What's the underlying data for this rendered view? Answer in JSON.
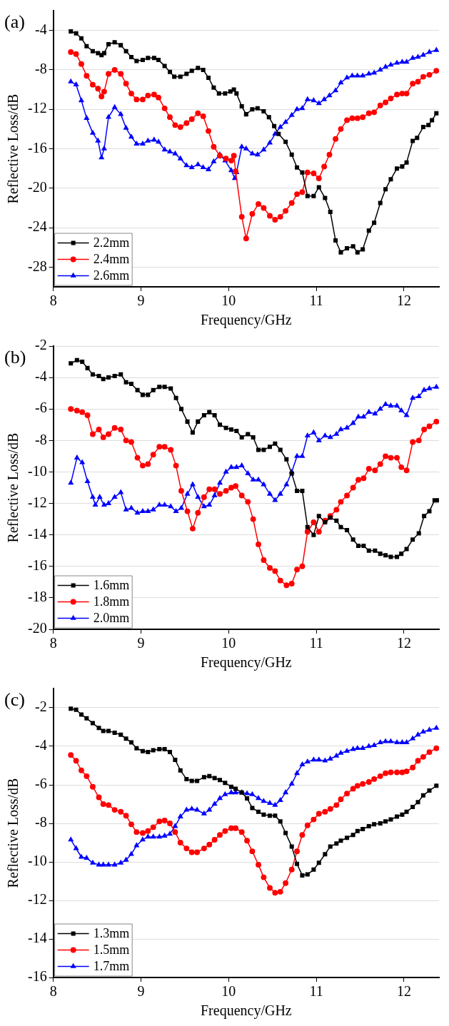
{
  "chart_data": [
    {
      "type": "line",
      "title": "(a)",
      "xlabel": "Frequency/GHz",
      "ylabel": "Reflective Loss/dB",
      "xlim": [
        8,
        12.4
      ],
      "xticks": [
        8,
        9,
        10,
        11,
        12
      ],
      "ylim": [
        -30,
        -2
      ],
      "yticks": [
        -28,
        -24,
        -20,
        -16,
        -12,
        -8,
        -4
      ],
      "grid": "y",
      "legend": "bottom left",
      "series": [
        {
          "name": "2.2mm",
          "color": "#000000",
          "marker": "square",
          "x": [
            8.2,
            8.26,
            8.32,
            8.38,
            8.45,
            8.51,
            8.55,
            8.58,
            8.63,
            8.7,
            8.77,
            8.83,
            8.89,
            8.95,
            9.02,
            9.08,
            9.15,
            9.2,
            9.27,
            9.33,
            9.38,
            9.45,
            9.52,
            9.58,
            9.65,
            9.71,
            9.77,
            9.83,
            9.89,
            9.96,
            10.02,
            10.06,
            10.09,
            10.15,
            10.2,
            10.27,
            10.33,
            10.4,
            10.46,
            10.52,
            10.57,
            10.65,
            10.72,
            10.78,
            10.84,
            10.9,
            10.97,
            11.03,
            11.1,
            11.16,
            11.22,
            11.28,
            11.35,
            11.42,
            11.47,
            11.53,
            11.6,
            11.66,
            11.73,
            11.79,
            11.85,
            11.92,
            11.98,
            12.03,
            12.1,
            12.15,
            12.22,
            12.28,
            12.32,
            12.37
          ],
          "values": [
            -4.1,
            -4.3,
            -4.8,
            -5.6,
            -6.1,
            -6.3,
            -6.5,
            -6.3,
            -5.4,
            -5.2,
            -5.5,
            -6.1,
            -6.7,
            -7.1,
            -7.0,
            -6.8,
            -6.8,
            -7.0,
            -7.6,
            -8.2,
            -8.7,
            -8.7,
            -8.4,
            -8.1,
            -7.8,
            -8.0,
            -8.8,
            -9.8,
            -10.4,
            -10.4,
            -10.2,
            -10.0,
            -10.4,
            -11.7,
            -12.5,
            -12.0,
            -11.9,
            -12.2,
            -12.8,
            -13.7,
            -14.5,
            -15.3,
            -16.6,
            -17.9,
            -18.4,
            -20.8,
            -20.8,
            -19.9,
            -21.0,
            -22.4,
            -25.3,
            -26.5,
            -26.1,
            -25.9,
            -26.5,
            -26.2,
            -24.3,
            -23.5,
            -21.5,
            -20.1,
            -19.1,
            -18.0,
            -17.8,
            -17.4,
            -15.2,
            -14.9,
            -13.8,
            -13.6,
            -13.1,
            -12.4
          ]
        },
        {
          "name": "2.4mm",
          "color": "#ff0000",
          "marker": "circle",
          "x": [
            8.2,
            8.26,
            8.32,
            8.38,
            8.45,
            8.51,
            8.55,
            8.58,
            8.63,
            8.7,
            8.77,
            8.83,
            8.89,
            8.95,
            9.02,
            9.08,
            9.15,
            9.2,
            9.27,
            9.33,
            9.39,
            9.45,
            9.52,
            9.58,
            9.65,
            9.71,
            9.77,
            9.83,
            9.9,
            9.97,
            10.03,
            10.06,
            10.08,
            10.15,
            10.2,
            10.27,
            10.34,
            10.4,
            10.47,
            10.53,
            10.59,
            10.65,
            10.72,
            10.78,
            10.84,
            10.9,
            10.97,
            11.03,
            11.09,
            11.15,
            11.22,
            11.28,
            11.35,
            11.41,
            11.47,
            11.53,
            11.6,
            11.66,
            11.73,
            11.79,
            11.85,
            11.92,
            11.98,
            12.03,
            12.1,
            12.16,
            12.22,
            12.29,
            12.37
          ],
          "values": [
            -6.2,
            -6.4,
            -7.4,
            -8.6,
            -9.5,
            -9.9,
            -10.7,
            -10.2,
            -8.4,
            -8.0,
            -8.4,
            -9.4,
            -10.4,
            -11.0,
            -11.0,
            -10.6,
            -10.5,
            -10.8,
            -11.9,
            -12.8,
            -13.6,
            -13.8,
            -13.4,
            -13.0,
            -12.4,
            -12.7,
            -14.2,
            -15.8,
            -16.7,
            -17.0,
            -17.2,
            -16.7,
            -18.3,
            -22.9,
            -25.1,
            -22.6,
            -21.6,
            -22.0,
            -22.8,
            -23.2,
            -22.9,
            -22.3,
            -21.5,
            -20.6,
            -20.4,
            -18.4,
            -18.5,
            -19.0,
            -17.8,
            -16.6,
            -15.0,
            -14.0,
            -13.1,
            -12.9,
            -12.9,
            -12.8,
            -12.4,
            -12.3,
            -11.6,
            -11.3,
            -10.9,
            -10.5,
            -10.4,
            -10.4,
            -9.4,
            -9.2,
            -8.7,
            -8.5,
            -8.1
          ]
        },
        {
          "name": "2.6mm",
          "color": "#0000ff",
          "marker": "triangle",
          "x": [
            8.2,
            8.26,
            8.32,
            8.38,
            8.45,
            8.51,
            8.55,
            8.58,
            8.63,
            8.7,
            8.77,
            8.83,
            8.89,
            8.95,
            9.02,
            9.08,
            9.15,
            9.2,
            9.27,
            9.33,
            9.39,
            9.45,
            9.52,
            9.58,
            9.65,
            9.71,
            9.77,
            9.83,
            9.9,
            9.96,
            10.03,
            10.07,
            10.09,
            10.15,
            10.2,
            10.27,
            10.33,
            10.4,
            10.47,
            10.53,
            10.59,
            10.65,
            10.72,
            10.78,
            10.84,
            10.9,
            10.97,
            11.03,
            11.09,
            11.15,
            11.22,
            11.28,
            11.35,
            11.41,
            11.47,
            11.53,
            11.6,
            11.66,
            11.73,
            11.79,
            11.85,
            11.92,
            11.98,
            12.03,
            12.1,
            12.16,
            12.22,
            12.29,
            12.37
          ],
          "values": [
            -9.2,
            -9.5,
            -11.1,
            -12.9,
            -14.4,
            -15.2,
            -16.9,
            -16.0,
            -12.8,
            -11.8,
            -12.5,
            -13.9,
            -14.8,
            -15.5,
            -15.5,
            -15.2,
            -15.1,
            -15.3,
            -16.1,
            -16.3,
            -16.5,
            -17.0,
            -17.7,
            -17.9,
            -17.6,
            -17.9,
            -18.1,
            -17.3,
            -16.6,
            -17.2,
            -18.2,
            -19.0,
            -18.4,
            -15.8,
            -16.0,
            -16.5,
            -16.6,
            -16.1,
            -15.4,
            -14.5,
            -13.8,
            -13.3,
            -12.6,
            -12.0,
            -11.9,
            -11.0,
            -11.1,
            -11.4,
            -11.0,
            -10.6,
            -10.1,
            -9.3,
            -8.8,
            -8.6,
            -8.6,
            -8.6,
            -8.4,
            -8.3,
            -8.0,
            -7.7,
            -7.5,
            -7.3,
            -7.2,
            -7.2,
            -6.8,
            -6.7,
            -6.5,
            -6.2,
            -6.0
          ]
        }
      ]
    },
    {
      "type": "line",
      "title": "(b)",
      "xlabel": "Frequency/GHz",
      "ylabel": "Reflective Loss/dB",
      "xlim": [
        8,
        12.4
      ],
      "xticks": [
        8,
        9,
        10,
        11,
        12
      ],
      "ylim": [
        -20,
        -2
      ],
      "yticks": [
        -20,
        -18,
        -16,
        -14,
        -12,
        -10,
        -8,
        -6,
        -4,
        -2
      ],
      "grid": "y",
      "legend": "bottom left",
      "series": [
        {
          "name": "1.6mm",
          "color": "#000000",
          "marker": "square",
          "x": [
            8.2,
            8.27,
            8.33,
            8.39,
            8.45,
            8.52,
            8.57,
            8.63,
            8.7,
            8.77,
            8.83,
            8.89,
            8.96,
            9.02,
            9.08,
            9.14,
            9.21,
            9.27,
            9.34,
            9.4,
            9.46,
            9.53,
            9.59,
            9.65,
            9.72,
            9.78,
            9.84,
            9.9,
            9.97,
            10.03,
            10.09,
            10.15,
            10.22,
            10.28,
            10.34,
            10.4,
            10.47,
            10.53,
            10.59,
            10.66,
            10.72,
            10.78,
            10.84,
            10.9,
            10.97,
            11.03,
            11.1,
            11.16,
            11.23,
            11.28,
            11.35,
            11.42,
            11.48,
            11.54,
            11.6,
            11.67,
            11.73,
            11.79,
            11.85,
            11.92,
            11.97,
            12.03,
            12.1,
            12.17,
            12.23,
            12.29,
            12.35,
            12.39
          ],
          "values": [
            -3.1,
            -2.9,
            -3.0,
            -3.4,
            -3.8,
            -3.9,
            -4.1,
            -4.0,
            -3.9,
            -3.8,
            -4.3,
            -4.4,
            -4.8,
            -5.1,
            -5.1,
            -4.8,
            -4.6,
            -4.6,
            -4.7,
            -5.3,
            -6.0,
            -6.8,
            -7.5,
            -6.8,
            -6.4,
            -6.2,
            -6.4,
            -7.0,
            -7.2,
            -7.3,
            -7.4,
            -7.8,
            -7.6,
            -7.8,
            -8.6,
            -8.6,
            -8.4,
            -8.2,
            -8.6,
            -9.2,
            -10.1,
            -11.2,
            -11.2,
            -13.5,
            -14.0,
            -12.8,
            -13.2,
            -12.9,
            -13.1,
            -13.5,
            -13.7,
            -14.3,
            -14.7,
            -14.7,
            -15.0,
            -15.0,
            -15.2,
            -15.3,
            -15.4,
            -15.4,
            -15.2,
            -14.9,
            -14.3,
            -13.9,
            -12.8,
            -12.5,
            -11.8,
            -11.8
          ]
        },
        {
          "name": "1.8mm",
          "color": "#ff0000",
          "marker": "circle",
          "x": [
            8.2,
            8.27,
            8.33,
            8.39,
            8.45,
            8.52,
            8.57,
            8.63,
            8.7,
            8.77,
            8.83,
            8.89,
            8.96,
            9.02,
            9.08,
            9.14,
            9.21,
            9.27,
            9.34,
            9.4,
            9.46,
            9.53,
            9.59,
            9.65,
            9.72,
            9.78,
            9.84,
            9.9,
            9.97,
            10.03,
            10.08,
            10.15,
            10.22,
            10.28,
            10.34,
            10.4,
            10.47,
            10.53,
            10.59,
            10.66,
            10.72,
            10.78,
            10.84,
            10.9,
            10.97,
            11.03,
            11.1,
            11.16,
            11.23,
            11.28,
            11.35,
            11.42,
            11.48,
            11.54,
            11.6,
            11.67,
            11.73,
            11.79,
            11.85,
            11.92,
            11.97,
            12.03,
            12.1,
            12.17,
            12.23,
            12.29,
            12.37
          ],
          "values": [
            -6.0,
            -6.1,
            -6.2,
            -6.4,
            -7.6,
            -7.3,
            -7.8,
            -7.6,
            -7.2,
            -7.3,
            -8.0,
            -8.1,
            -9.1,
            -9.6,
            -9.5,
            -8.9,
            -8.4,
            -8.4,
            -8.6,
            -9.6,
            -11.2,
            -12.5,
            -13.6,
            -12.6,
            -11.6,
            -11.1,
            -11.1,
            -11.4,
            -11.2,
            -11.0,
            -10.9,
            -11.5,
            -11.9,
            -13.0,
            -14.6,
            -15.6,
            -16.1,
            -16.3,
            -16.9,
            -17.2,
            -17.1,
            -16.2,
            -16.0,
            -13.8,
            -13.2,
            -13.8,
            -13.1,
            -12.8,
            -12.4,
            -11.9,
            -11.5,
            -11.0,
            -10.5,
            -10.4,
            -9.8,
            -9.9,
            -9.5,
            -9.0,
            -9.1,
            -9.1,
            -9.7,
            -9.9,
            -8.1,
            -8.0,
            -7.3,
            -7.1,
            -6.8
          ]
        },
        {
          "name": "2.0mm",
          "color": "#0000ff",
          "marker": "triangle",
          "x": [
            8.2,
            8.27,
            8.33,
            8.39,
            8.45,
            8.48,
            8.53,
            8.58,
            8.63,
            8.7,
            8.77,
            8.83,
            8.89,
            8.96,
            9.02,
            9.08,
            9.14,
            9.21,
            9.27,
            9.34,
            9.4,
            9.46,
            9.53,
            9.59,
            9.65,
            9.72,
            9.78,
            9.84,
            9.9,
            9.97,
            10.03,
            10.09,
            10.15,
            10.22,
            10.28,
            10.34,
            10.4,
            10.47,
            10.53,
            10.59,
            10.66,
            10.72,
            10.78,
            10.84,
            10.9,
            10.97,
            11.03,
            11.1,
            11.16,
            11.23,
            11.28,
            11.35,
            11.42,
            11.48,
            11.54,
            11.6,
            11.67,
            11.73,
            11.79,
            11.85,
            11.92,
            11.97,
            12.03,
            12.1,
            12.17,
            12.23,
            12.29,
            12.37
          ],
          "values": [
            -10.7,
            -9.1,
            -9.4,
            -10.6,
            -11.6,
            -12.1,
            -11.6,
            -12.1,
            -12.0,
            -11.6,
            -11.3,
            -12.4,
            -12.3,
            -12.6,
            -12.5,
            -12.5,
            -12.4,
            -12.1,
            -12.1,
            -12.2,
            -12.5,
            -12.3,
            -11.4,
            -10.8,
            -11.6,
            -12.2,
            -12.1,
            -11.5,
            -10.7,
            -10.0,
            -9.7,
            -9.7,
            -9.6,
            -10.1,
            -10.5,
            -10.5,
            -10.8,
            -11.4,
            -11.8,
            -11.4,
            -10.8,
            -10.0,
            -9.0,
            -9.0,
            -7.7,
            -7.5,
            -8.0,
            -7.7,
            -7.8,
            -7.6,
            -7.3,
            -7.2,
            -6.9,
            -6.5,
            -6.5,
            -6.2,
            -6.3,
            -6.0,
            -5.7,
            -5.8,
            -5.8,
            -6.1,
            -6.4,
            -5.3,
            -5.2,
            -4.8,
            -4.7,
            -4.6
          ]
        }
      ]
    },
    {
      "type": "line",
      "title": "(c)",
      "xlabel": "Frequency/GHz",
      "ylabel": "Reflective Loss/dB",
      "xlim": [
        8,
        12.4
      ],
      "xticks": [
        8,
        9,
        10,
        11,
        12
      ],
      "ylim": [
        -16,
        -1
      ],
      "yticks": [
        -16,
        -14,
        -12,
        -10,
        -8,
        -6,
        -4,
        -2
      ],
      "grid": "y",
      "legend": "bottom left",
      "x": [
        8.2,
        8.26,
        8.32,
        8.38,
        8.45,
        8.52,
        8.57,
        8.63,
        8.7,
        8.77,
        8.83,
        8.89,
        8.95,
        9.02,
        9.08,
        9.14,
        9.21,
        9.27,
        9.33,
        9.39,
        9.45,
        9.52,
        9.58,
        9.64,
        9.72,
        9.78,
        9.84,
        9.9,
        9.96,
        10.03,
        10.08,
        10.15,
        10.21,
        10.27,
        10.34,
        10.4,
        10.47,
        10.53,
        10.59,
        10.65,
        10.72,
        10.78,
        10.84,
        10.9,
        10.97,
        11.03,
        11.1,
        11.16,
        11.23,
        11.28,
        11.35,
        11.42,
        11.47,
        11.53,
        11.6,
        11.66,
        11.73,
        11.79,
        11.85,
        11.92,
        11.98,
        12.03,
        12.1,
        12.16,
        12.22,
        12.29,
        12.37
      ],
      "series": [
        {
          "name": "1.3mm",
          "color": "#000000",
          "marker": "square",
          "values": [
            -2.05,
            -2.1,
            -2.35,
            -2.55,
            -2.8,
            -3.05,
            -3.2,
            -3.2,
            -3.3,
            -3.4,
            -3.6,
            -3.8,
            -4.1,
            -4.25,
            -4.3,
            -4.2,
            -4.15,
            -4.15,
            -4.3,
            -4.7,
            -5.25,
            -5.7,
            -5.8,
            -5.8,
            -5.6,
            -5.55,
            -5.65,
            -5.75,
            -5.9,
            -6.1,
            -6.2,
            -6.4,
            -6.7,
            -7.2,
            -7.4,
            -7.55,
            -7.6,
            -7.6,
            -7.9,
            -8.5,
            -9.2,
            -10.1,
            -10.7,
            -10.65,
            -10.4,
            -10.05,
            -9.6,
            -9.2,
            -9.05,
            -8.9,
            -8.75,
            -8.6,
            -8.4,
            -8.3,
            -8.15,
            -8.05,
            -8.0,
            -7.9,
            -7.8,
            -7.65,
            -7.55,
            -7.4,
            -7.15,
            -6.9,
            -6.55,
            -6.3,
            -6.05
          ]
        },
        {
          "name": "1.5mm",
          "color": "#ff0000",
          "marker": "circle",
          "values": [
            -4.45,
            -4.75,
            -5.25,
            -5.55,
            -6.1,
            -6.65,
            -7.0,
            -7.05,
            -7.3,
            -7.4,
            -7.6,
            -8.05,
            -8.45,
            -8.5,
            -8.4,
            -8.2,
            -7.9,
            -7.85,
            -8.0,
            -8.45,
            -9.0,
            -9.3,
            -9.5,
            -9.5,
            -9.3,
            -9.1,
            -8.85,
            -8.6,
            -8.4,
            -8.25,
            -8.25,
            -8.45,
            -8.9,
            -9.45,
            -10.15,
            -10.8,
            -11.35,
            -11.6,
            -11.55,
            -11.1,
            -10.4,
            -9.45,
            -8.6,
            -8.1,
            -7.8,
            -7.5,
            -7.4,
            -7.25,
            -7.05,
            -6.75,
            -6.45,
            -6.2,
            -6.05,
            -5.95,
            -5.85,
            -5.7,
            -5.55,
            -5.4,
            -5.35,
            -5.35,
            -5.35,
            -5.3,
            -5.1,
            -4.75,
            -4.55,
            -4.3,
            -4.1
          ]
        },
        {
          "name": "1.7mm",
          "color": "#0000ff",
          "marker": "triangle",
          "values": [
            -8.85,
            -9.3,
            -9.75,
            -9.8,
            -10.05,
            -10.15,
            -10.15,
            -10.15,
            -10.15,
            -10.05,
            -9.9,
            -9.6,
            -9.15,
            -8.85,
            -8.7,
            -8.7,
            -8.7,
            -8.65,
            -8.55,
            -8.15,
            -7.65,
            -7.3,
            -7.25,
            -7.3,
            -7.5,
            -7.3,
            -7.0,
            -6.7,
            -6.5,
            -6.4,
            -6.4,
            -6.4,
            -6.45,
            -6.5,
            -6.7,
            -6.85,
            -6.95,
            -7.05,
            -6.8,
            -6.4,
            -5.95,
            -5.4,
            -4.95,
            -4.8,
            -4.7,
            -4.7,
            -4.75,
            -4.65,
            -4.5,
            -4.35,
            -4.25,
            -4.15,
            -4.1,
            -4.1,
            -4.0,
            -3.95,
            -3.8,
            -3.75,
            -3.75,
            -3.8,
            -3.8,
            -3.8,
            -3.6,
            -3.4,
            -3.25,
            -3.15,
            -3.05
          ]
        }
      ]
    }
  ]
}
